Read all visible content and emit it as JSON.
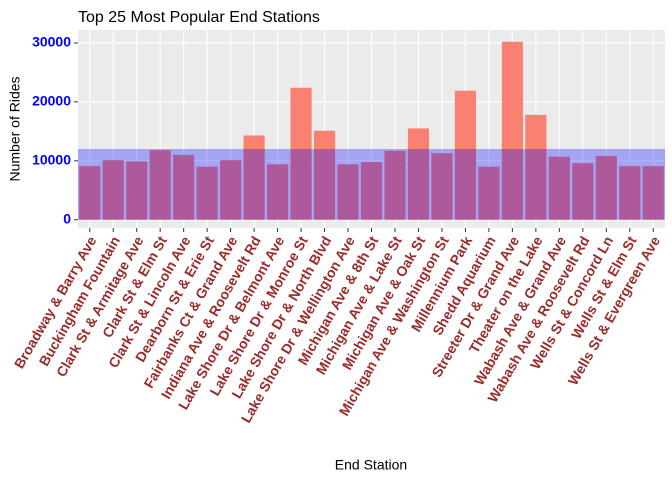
{
  "chart_data": {
    "type": "bar",
    "title": "Top 25 Most Popular End Stations",
    "x_label": "End Station",
    "y_label": "Number of Rides",
    "categories": [
      "Broadway & Barry Ave",
      "Buckingham Fountain",
      "Clark St & Armitage Ave",
      "Clark St & Elm St",
      "Clark St & Lincoln Ave",
      "Dearborn St & Erie St",
      "Fairbanks Ct & Grand Ave",
      "Indiana Ave & Roosevelt Rd",
      "Lake Shore Dr & Belmont Ave",
      "Lake Shore Dr & Monroe St",
      "Lake Shore Dr & North Blvd",
      "Lake Shore Dr & Wellington Ave",
      "Michigan Ave & 8th St",
      "Michigan Ave & Lake St",
      "Michigan Ave & Oak St",
      "Michigan Ave & Washington St",
      "Millennium Park",
      "Shedd Aquarium",
      "Streeter Dr & Grand Ave",
      "Theater on the Lake",
      "Wabash Ave & Grand Ave",
      "Wabash Ave & Roosevelt Rd",
      "Wells St & Concord Ln",
      "Wells St & Elm St",
      "Wells St & Evergreen Ave"
    ],
    "values": [
      9100,
      10100,
      9900,
      11800,
      11000,
      9000,
      10100,
      14300,
      9400,
      22400,
      15100,
      9400,
      9800,
      11700,
      15500,
      11300,
      21900,
      9000,
      30200,
      17800,
      10700,
      9600,
      10800,
      9100,
      9100
    ],
    "color": "#fa8072",
    "band": {
      "ymin": 0,
      "ymax": 12000,
      "color": "#0000ff",
      "opacity": 0.3
    },
    "ylim": [
      -1400,
      32200
    ],
    "yticks": [
      0,
      10000,
      20000,
      30000
    ],
    "grid": true,
    "ytick_color": "#0000ff",
    "xtick_color": "#9b2c2c"
  }
}
